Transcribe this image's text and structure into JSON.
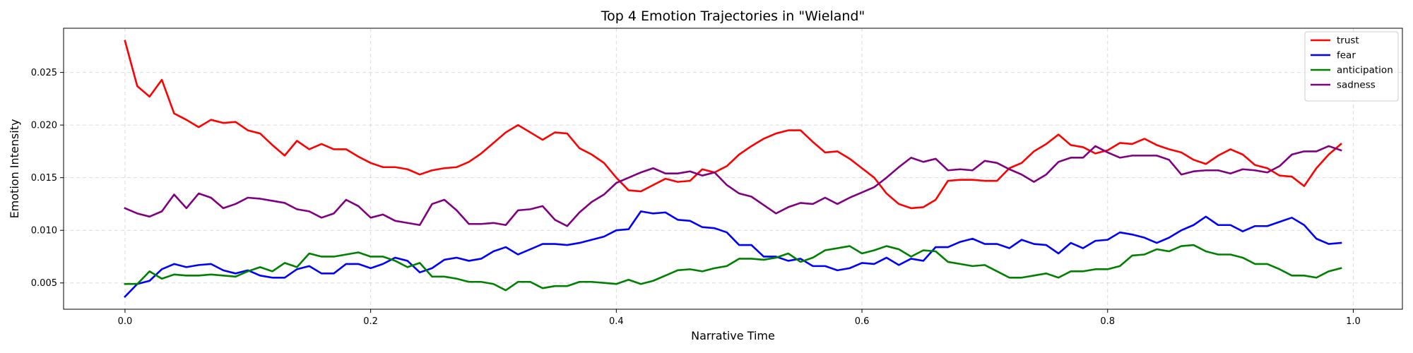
{
  "chart_data": {
    "type": "line",
    "title": "Top 4 Emotion Trajectories in \"Wieland\"",
    "xlabel": "Narrative Time",
    "ylabel": "Emotion Intensity",
    "xlim": [
      -0.05,
      1.04
    ],
    "ylim": [
      0.0025,
      0.0292
    ],
    "xticks": [
      0.0,
      0.2,
      0.4,
      0.6,
      0.8,
      1.0
    ],
    "xtick_labels": [
      "0.0",
      "0.2",
      "0.4",
      "0.6",
      "0.8",
      "1.0"
    ],
    "yticks": [
      0.005,
      0.01,
      0.015,
      0.02,
      0.025
    ],
    "ytick_labels": [
      "0.005",
      "0.010",
      "0.015",
      "0.020",
      "0.025"
    ],
    "grid": true,
    "legend_position": "top-right",
    "x_start": 0.0,
    "x_step": 0.01,
    "series": [
      {
        "name": "trust",
        "color": "#ff0000",
        "values": [
          0.028,
          0.0237,
          0.0227,
          0.0243,
          0.0211,
          0.0205,
          0.0198,
          0.0205,
          0.0202,
          0.0203,
          0.0195,
          0.0192,
          0.0181,
          0.0171,
          0.0185,
          0.0177,
          0.0182,
          0.0177,
          0.0177,
          0.017,
          0.0164,
          0.016,
          0.016,
          0.0158,
          0.0153,
          0.0157,
          0.0159,
          0.016,
          0.0165,
          0.0173,
          0.0183,
          0.0193,
          0.02,
          0.0193,
          0.0186,
          0.0193,
          0.0192,
          0.0178,
          0.0172,
          0.0164,
          0.015,
          0.0138,
          0.0137,
          0.0143,
          0.0149,
          0.0146,
          0.0147,
          0.0158,
          0.0155,
          0.0161,
          0.0172,
          0.018,
          0.0187,
          0.0192,
          0.0195,
          0.0195,
          0.0184,
          0.0174,
          0.0175,
          0.0168,
          0.0159,
          0.015,
          0.0135,
          0.0125,
          0.0121,
          0.0122,
          0.0129,
          0.0147,
          0.0148,
          0.0148,
          0.0147,
          0.0147,
          0.0159,
          0.0164,
          0.0175,
          0.0182,
          0.0191,
          0.0181,
          0.0179,
          0.0173,
          0.0176,
          0.0183,
          0.0182,
          0.0187,
          0.0181,
          0.0177,
          0.0174,
          0.0167,
          0.0163,
          0.0171,
          0.0177,
          0.0172,
          0.0162,
          0.0159,
          0.0152,
          0.0151,
          0.0142,
          0.0159,
          0.0172,
          0.0182
        ]
      },
      {
        "name": "fear",
        "color": "#0000ff",
        "values": [
          0.0037,
          0.0049,
          0.0052,
          0.0063,
          0.0068,
          0.0065,
          0.0067,
          0.0068,
          0.0062,
          0.0059,
          0.0062,
          0.0057,
          0.0055,
          0.0055,
          0.0063,
          0.0066,
          0.0059,
          0.0059,
          0.0068,
          0.0068,
          0.0064,
          0.0068,
          0.0074,
          0.0071,
          0.006,
          0.0064,
          0.0072,
          0.0074,
          0.0071,
          0.0073,
          0.008,
          0.0084,
          0.0077,
          0.0082,
          0.0087,
          0.0087,
          0.0086,
          0.0088,
          0.0091,
          0.0094,
          0.01,
          0.0101,
          0.0118,
          0.0116,
          0.0117,
          0.011,
          0.0109,
          0.0103,
          0.0102,
          0.0098,
          0.0086,
          0.0086,
          0.0075,
          0.0075,
          0.0071,
          0.0073,
          0.0066,
          0.0066,
          0.0062,
          0.0064,
          0.0069,
          0.0068,
          0.0074,
          0.0067,
          0.0073,
          0.0071,
          0.0084,
          0.0084,
          0.0089,
          0.0092,
          0.0087,
          0.0087,
          0.0083,
          0.0091,
          0.0087,
          0.0086,
          0.0078,
          0.0088,
          0.0083,
          0.009,
          0.0091,
          0.0098,
          0.0096,
          0.0093,
          0.0088,
          0.0093,
          0.01,
          0.0105,
          0.0113,
          0.0105,
          0.0105,
          0.0099,
          0.0104,
          0.0104,
          0.0108,
          0.0112,
          0.0105,
          0.0092,
          0.0087,
          0.0088
        ]
      },
      {
        "name": "anticipation",
        "color": "#008000",
        "values": [
          0.0049,
          0.0049,
          0.0061,
          0.0054,
          0.0058,
          0.0057,
          0.0057,
          0.0058,
          0.0057,
          0.0056,
          0.0061,
          0.0065,
          0.0061,
          0.0069,
          0.0065,
          0.0078,
          0.0075,
          0.0075,
          0.0077,
          0.0079,
          0.0075,
          0.0075,
          0.0071,
          0.0065,
          0.0069,
          0.0056,
          0.0056,
          0.0054,
          0.0051,
          0.0051,
          0.0049,
          0.0043,
          0.0051,
          0.0051,
          0.0045,
          0.0047,
          0.0047,
          0.0051,
          0.0051,
          0.005,
          0.0049,
          0.0053,
          0.0049,
          0.0052,
          0.0057,
          0.0062,
          0.0063,
          0.0061,
          0.0064,
          0.0066,
          0.0073,
          0.0073,
          0.0072,
          0.0074,
          0.0078,
          0.007,
          0.0074,
          0.0081,
          0.0083,
          0.0085,
          0.0078,
          0.0081,
          0.0085,
          0.0082,
          0.0075,
          0.0081,
          0.008,
          0.007,
          0.0068,
          0.0066,
          0.0067,
          0.0061,
          0.0055,
          0.0055,
          0.0057,
          0.0059,
          0.0055,
          0.0061,
          0.0061,
          0.0063,
          0.0063,
          0.0066,
          0.0076,
          0.0077,
          0.0082,
          0.008,
          0.0085,
          0.0086,
          0.008,
          0.0077,
          0.0077,
          0.0074,
          0.0068,
          0.0068,
          0.0063,
          0.0057,
          0.0057,
          0.0055,
          0.0061,
          0.0064
        ]
      },
      {
        "name": "sadness",
        "color": "#800080",
        "values": [
          0.0121,
          0.0116,
          0.0113,
          0.0118,
          0.0134,
          0.0121,
          0.0135,
          0.0131,
          0.0121,
          0.0125,
          0.0131,
          0.013,
          0.0128,
          0.0126,
          0.012,
          0.0118,
          0.0112,
          0.0116,
          0.0129,
          0.0123,
          0.0112,
          0.0115,
          0.0109,
          0.0107,
          0.0105,
          0.0125,
          0.0129,
          0.0119,
          0.0106,
          0.0106,
          0.0107,
          0.0105,
          0.0119,
          0.012,
          0.0123,
          0.011,
          0.0104,
          0.0117,
          0.0127,
          0.0134,
          0.0145,
          0.015,
          0.0155,
          0.0159,
          0.0154,
          0.0154,
          0.0156,
          0.0152,
          0.0155,
          0.0143,
          0.0135,
          0.0132,
          0.0124,
          0.0116,
          0.0122,
          0.0126,
          0.0125,
          0.0131,
          0.0125,
          0.0131,
          0.0136,
          0.0141,
          0.015,
          0.016,
          0.0169,
          0.0165,
          0.0168,
          0.0157,
          0.0158,
          0.0157,
          0.0166,
          0.0164,
          0.0158,
          0.0153,
          0.0146,
          0.0153,
          0.0165,
          0.0169,
          0.0169,
          0.018,
          0.0174,
          0.0169,
          0.0171,
          0.0171,
          0.0171,
          0.0167,
          0.0153,
          0.0156,
          0.0157,
          0.0157,
          0.0154,
          0.0158,
          0.0157,
          0.0155,
          0.0161,
          0.0172,
          0.0175,
          0.0175,
          0.018,
          0.0176
        ]
      }
    ]
  }
}
